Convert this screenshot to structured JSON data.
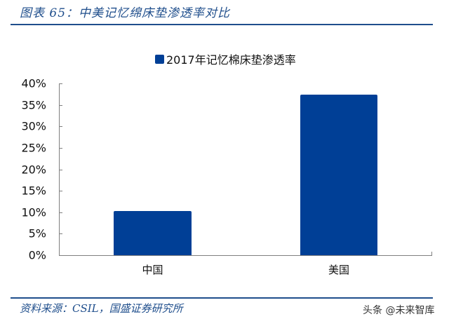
{
  "figure": {
    "title": "图表 65：中美记忆绵床垫渗透率对比",
    "source": "资料来源：CSIL，国盛证券研究所",
    "watermark": "头条 @未来智库"
  },
  "colors": {
    "bar": "#003f96",
    "title": "#1f4e8c",
    "axis": "#7f7f7f"
  },
  "chart_data": {
    "type": "bar",
    "title": "",
    "categories": [
      "中国",
      "美国"
    ],
    "series": [
      {
        "name": "2017年记忆棉床垫渗透率",
        "values": [
          10.3,
          37.4
        ]
      }
    ],
    "xlabel": "",
    "ylabel": "",
    "ylim": [
      0,
      40
    ],
    "yticks": [
      "0%",
      "5%",
      "10%",
      "15%",
      "20%",
      "25%",
      "30%",
      "35%",
      "40%"
    ],
    "grid": false,
    "legend_position": "top"
  }
}
